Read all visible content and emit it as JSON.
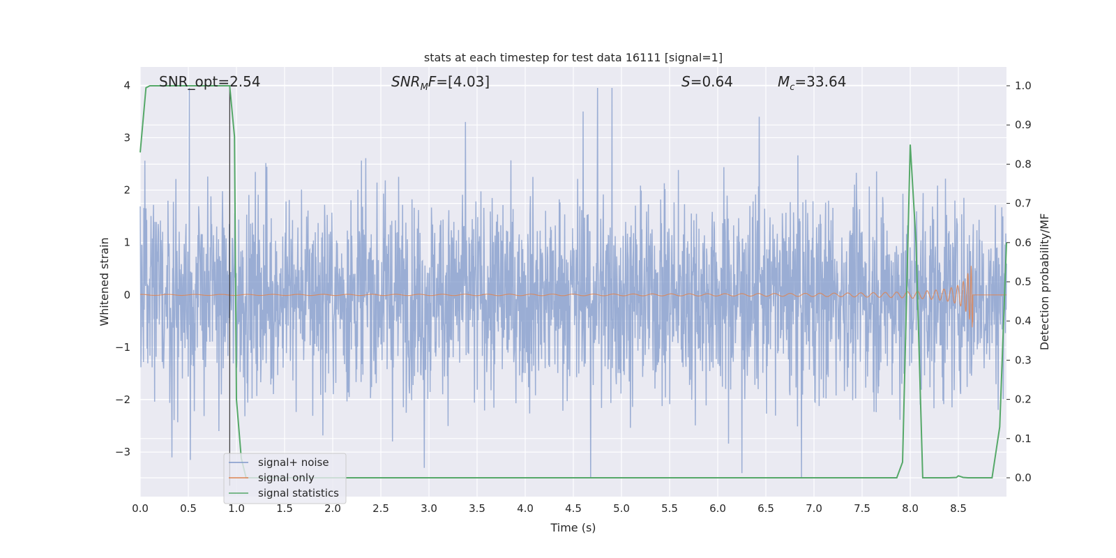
{
  "chart_data": {
    "type": "line",
    "title": "stats at each timestep for test data 16111 [signal=1]",
    "xlabel": "Time (s)",
    "ylabel_left": "Whitened strain",
    "ylabel_right": "Detection probability/MF",
    "xlim": [
      0.0,
      9.0
    ],
    "ylim_left": [
      -3.85,
      4.35
    ],
    "ylim_right": [
      -0.048,
      1.048
    ],
    "x_ticks": [
      "0.0",
      "0.5",
      "1.0",
      "1.5",
      "2.0",
      "2.5",
      "3.0",
      "3.5",
      "4.0",
      "4.5",
      "5.0",
      "5.5",
      "6.0",
      "6.5",
      "7.0",
      "7.5",
      "8.0",
      "8.5"
    ],
    "y_left_ticks": [
      "−3",
      "−2",
      "−1",
      "0",
      "1",
      "2",
      "3",
      "4"
    ],
    "y_right_ticks": [
      "0.0",
      "0.1",
      "0.2",
      "0.3",
      "0.4",
      "0.5",
      "0.6",
      "0.7",
      "0.8",
      "0.9",
      "1.0"
    ],
    "grid": true,
    "legend_position": "lower-left",
    "annotations": [
      {
        "text": "SNR_opt=2.54"
      },
      {
        "text": "SNR_MF=[4.03]"
      },
      {
        "text": "S=0.64"
      },
      {
        "text": "M_c=33.64"
      }
    ],
    "series": [
      {
        "name": "signal+ noise",
        "axis": "left",
        "color": "#7f98c9",
        "description_values": "whitened noise, approx. Gaussian, std ~0.95, range -3.5 to 4.0",
        "noise_std": 0.95,
        "spikes": [
          [
            0.51,
            3.95
          ],
          [
            0.52,
            -3.15
          ],
          [
            0.33,
            -3.1
          ],
          [
            3.38,
            3.3
          ],
          [
            4.6,
            3.5
          ],
          [
            4.75,
            3.95
          ],
          [
            4.9,
            3.95
          ],
          [
            4.68,
            -3.5
          ],
          [
            6.87,
            -3.5
          ],
          [
            6.43,
            3.4
          ],
          [
            6.25,
            -3.4
          ],
          [
            2.95,
            -3.3
          ]
        ]
      },
      {
        "name": "signal only",
        "axis": "left",
        "color": "#dd8452",
        "chirp_end": 8.65,
        "chirp_peak_amplitude": 0.62
      },
      {
        "name": "signal statistics",
        "axis": "right",
        "color": "#55a868",
        "x": [
          0.0,
          0.06,
          0.1,
          0.15,
          0.3,
          0.5,
          0.7,
          0.88,
          0.93,
          0.98,
          1.0,
          1.05,
          1.1,
          2.0,
          3.0,
          4.0,
          5.0,
          6.0,
          7.0,
          7.86,
          7.92,
          8.0,
          8.06,
          8.13,
          8.2,
          8.4,
          8.48,
          8.5,
          8.55,
          8.6,
          8.85,
          8.93,
          9.0
        ],
        "y": [
          0.83,
          0.995,
          1.0,
          1.0,
          1.0,
          1.0,
          1.0,
          1.0,
          1.0,
          0.87,
          0.2,
          0.05,
          0.0,
          0.0,
          0.0,
          0.0,
          0.0,
          0.0,
          0.0,
          0.0,
          0.04,
          0.85,
          0.6,
          0.0,
          0.0,
          0.0,
          0.001,
          0.005,
          0.001,
          0.0,
          0.0,
          0.13,
          0.6
        ]
      }
    ],
    "vline": {
      "x": 0.93,
      "color": "#333333"
    }
  },
  "colors": {
    "plot_background": "#eaeaf2",
    "grid": "#ffffff",
    "text": "#262626"
  }
}
